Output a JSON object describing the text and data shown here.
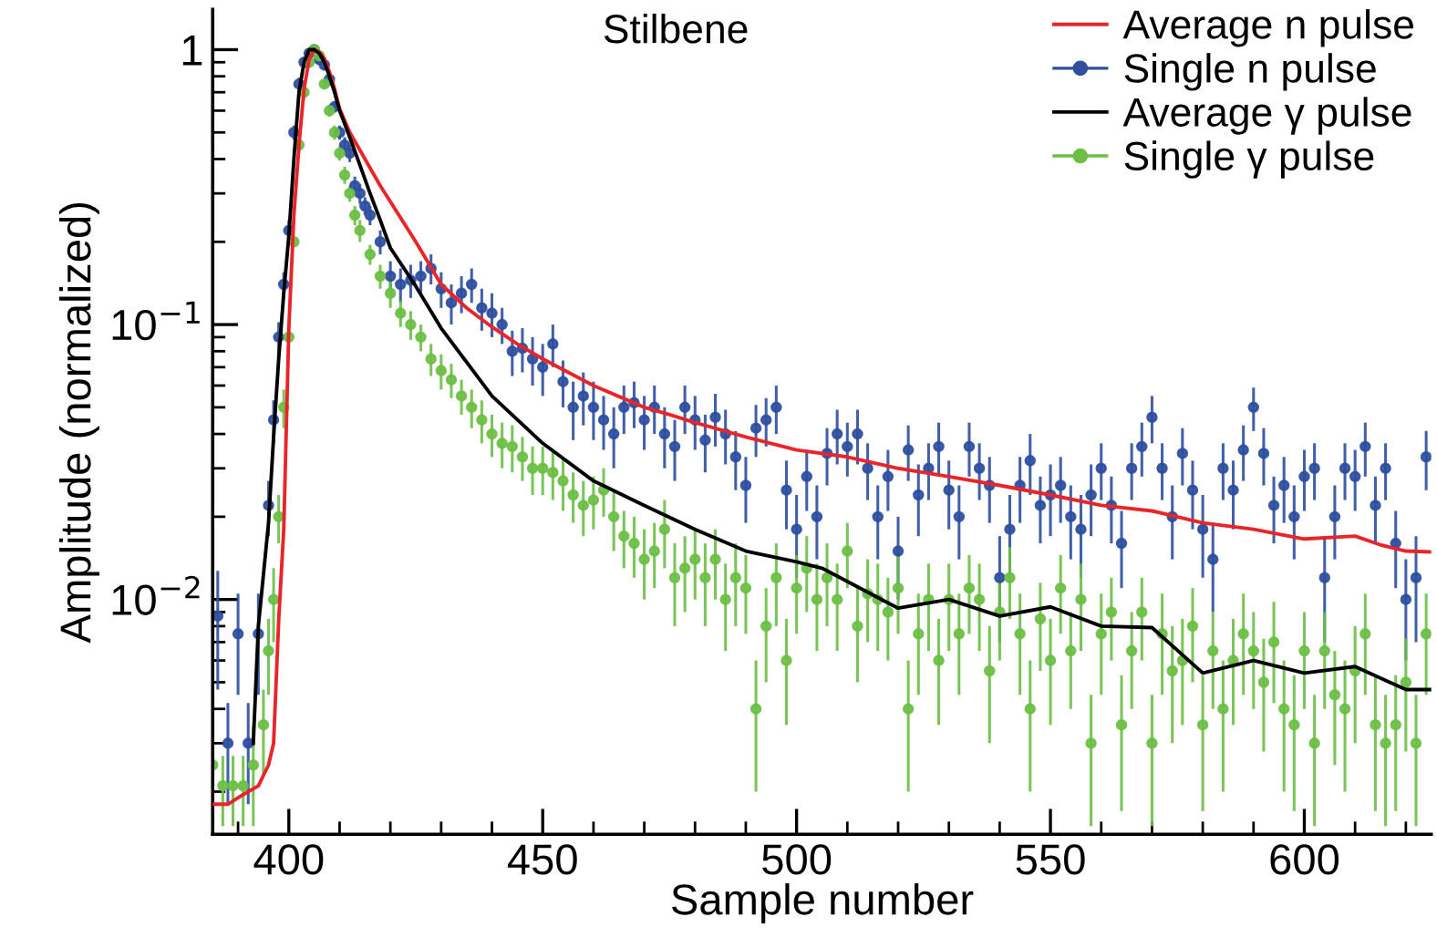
{
  "chart_data": {
    "type": "line",
    "title": "Stilbene",
    "xlabel": "Sample number",
    "ylabel": "Amplitude (normalized)",
    "log": "y",
    "xlim": [
      385,
      625
    ],
    "xticks": [
      400,
      450,
      500,
      550,
      600
    ],
    "ylim": [
      0.0014,
      1.4
    ],
    "yticks": [
      {
        "value": 1,
        "label": "1"
      },
      {
        "value": 0.1,
        "label": "10$^{−1}$"
      },
      {
        "value": 0.01,
        "label": "10$^{−2}$"
      }
    ],
    "legend": "top right",
    "grid": false,
    "series": [
      {
        "name": "Average n pulse",
        "color": "#e8262a",
        "x": [
          385,
          388,
          390,
          392,
          394,
          396,
          397,
          398,
          399,
          400,
          401,
          402,
          403,
          404,
          405,
          406,
          407,
          408,
          409,
          410,
          412,
          415,
          418,
          420,
          425,
          430,
          435,
          440,
          445,
          450,
          460,
          470,
          475,
          480,
          490,
          500,
          510,
          520,
          530,
          540,
          550,
          560,
          570,
          580,
          590,
          600,
          610,
          615,
          620,
          625
        ],
        "values": [
          0.0018,
          0.0018,
          0.0019,
          0.002,
          0.0021,
          0.0025,
          0.003,
          0.0084,
          0.018,
          0.097,
          0.25,
          0.45,
          0.72,
          0.92,
          1.0,
          0.98,
          0.93,
          0.83,
          0.72,
          0.61,
          0.5,
          0.4,
          0.32,
          0.28,
          0.2,
          0.14,
          0.115,
          0.098,
          0.085,
          0.075,
          0.06,
          0.05,
          0.047,
          0.044,
          0.039,
          0.035,
          0.033,
          0.03,
          0.028,
          0.026,
          0.024,
          0.022,
          0.021,
          0.019,
          0.018,
          0.0166,
          0.017,
          0.0158,
          0.015,
          0.0149
        ]
      },
      {
        "name": "Single n pulse",
        "type": "scatter",
        "marker": "circle",
        "color": "#2e4fa0",
        "x": [
          386,
          388,
          390,
          392,
          394,
          396,
          397,
          398,
          399,
          400,
          401,
          402,
          403,
          404,
          405,
          406,
          407,
          408,
          409,
          410,
          411,
          412,
          413,
          414,
          415,
          416,
          418,
          420,
          422,
          424,
          426,
          428,
          430,
          432,
          434,
          436,
          438,
          440,
          442,
          444,
          446,
          448,
          450,
          452,
          454,
          456,
          458,
          460,
          462,
          464,
          466,
          468,
          470,
          472,
          474,
          476,
          478,
          480,
          482,
          484,
          486,
          488,
          490,
          492,
          494,
          496,
          498,
          500,
          502,
          504,
          506,
          508,
          510,
          512,
          514,
          516,
          518,
          520,
          522,
          524,
          526,
          528,
          530,
          532,
          534,
          536,
          538,
          540,
          542,
          544,
          546,
          548,
          550,
          552,
          554,
          556,
          558,
          560,
          562,
          564,
          566,
          568,
          570,
          572,
          574,
          576,
          578,
          580,
          582,
          584,
          586,
          588,
          590,
          592,
          594,
          596,
          598,
          600,
          602,
          604,
          606,
          608,
          610,
          612,
          614,
          616,
          618,
          620,
          622,
          624
        ],
        "values": [
          0.0087,
          0.003,
          0.0075,
          0.003,
          0.0075,
          0.022,
          0.045,
          0.09,
          0.14,
          0.22,
          0.5,
          0.75,
          0.9,
          0.97,
          1.0,
          0.92,
          0.88,
          0.78,
          0.62,
          0.5,
          0.45,
          0.42,
          0.32,
          0.3,
          0.27,
          0.25,
          0.2,
          0.15,
          0.14,
          0.145,
          0.15,
          0.16,
          0.135,
          0.12,
          0.13,
          0.14,
          0.115,
          0.11,
          0.1,
          0.08,
          0.082,
          0.075,
          0.07,
          0.085,
          0.062,
          0.05,
          0.055,
          0.05,
          0.045,
          0.04,
          0.05,
          0.052,
          0.045,
          0.05,
          0.04,
          0.036,
          0.05,
          0.045,
          0.038,
          0.046,
          0.04,
          0.033,
          0.026,
          0.042,
          0.045,
          0.05,
          0.025,
          0.018,
          0.028,
          0.02,
          0.034,
          0.04,
          0.036,
          0.04,
          0.03,
          0.02,
          0.028,
          0.015,
          0.035,
          0.024,
          0.03,
          0.036,
          0.025,
          0.02,
          0.036,
          0.03,
          0.026,
          0.012,
          0.018,
          0.026,
          0.032,
          0.022,
          0.024,
          0.026,
          0.02,
          0.018,
          0.024,
          0.03,
          0.022,
          0.016,
          0.03,
          0.036,
          0.046,
          0.03,
          0.02,
          0.034,
          0.025,
          0.018,
          0.014,
          0.03,
          0.025,
          0.035,
          0.05,
          0.034,
          0.022,
          0.026,
          0.02,
          0.028,
          0.03,
          0.012,
          0.02,
          0.03,
          0.028,
          0.036,
          0.022,
          0.03,
          0.016,
          0.01,
          0.012,
          0.033
        ],
        "errors": [
          0.004,
          0.0012,
          0.003,
          0.0012,
          0.003,
          0.005,
          0.008,
          0.012,
          0.015,
          0.02,
          0.03,
          0.04,
          0.04,
          0.04,
          0.04,
          0.04,
          0.04,
          0.04,
          0.03,
          0.03,
          0.03,
          0.03,
          0.025,
          0.025,
          0.02,
          0.02,
          0.02,
          0.02,
          0.02,
          0.02,
          0.02,
          0.02,
          0.02,
          0.02,
          0.02,
          0.02,
          0.02,
          0.02,
          0.015,
          0.015,
          0.015,
          0.015,
          0.015,
          0.015,
          0.012,
          0.012,
          0.012,
          0.012,
          0.01,
          0.01,
          0.01,
          0.01,
          0.01,
          0.01,
          0.01,
          0.009,
          0.01,
          0.01,
          0.009,
          0.01,
          0.009,
          0.008,
          0.007,
          0.009,
          0.009,
          0.01,
          0.007,
          0.006,
          0.007,
          0.006,
          0.008,
          0.009,
          0.008,
          0.009,
          0.007,
          0.006,
          0.007,
          0.005,
          0.008,
          0.007,
          0.007,
          0.008,
          0.007,
          0.006,
          0.008,
          0.007,
          0.007,
          0.005,
          0.006,
          0.007,
          0.008,
          0.006,
          0.007,
          0.007,
          0.006,
          0.006,
          0.007,
          0.007,
          0.006,
          0.005,
          0.007,
          0.008,
          0.009,
          0.007,
          0.006,
          0.008,
          0.007,
          0.006,
          0.005,
          0.007,
          0.007,
          0.008,
          0.009,
          0.008,
          0.006,
          0.007,
          0.006,
          0.007,
          0.007,
          0.005,
          0.006,
          0.007,
          0.007,
          0.008,
          0.006,
          0.007,
          0.005,
          0.004,
          0.005,
          0.008
        ]
      },
      {
        "name": "Average γ pulse",
        "color": "#000000",
        "x": [
          393,
          394,
          396,
          397,
          398,
          399,
          400,
          401,
          402,
          403,
          404,
          405,
          406,
          407,
          408,
          409,
          410,
          412,
          414,
          416,
          418,
          420,
          425,
          430,
          440,
          450,
          460,
          470,
          480,
          490,
          500,
          505,
          520,
          530,
          540,
          550,
          560,
          570,
          580,
          590,
          600,
          610,
          620,
          625
        ],
        "values": [
          0.003,
          0.008,
          0.019,
          0.039,
          0.075,
          0.13,
          0.21,
          0.4,
          0.7,
          0.9,
          1.0,
          1.0,
          0.97,
          0.9,
          0.8,
          0.7,
          0.6,
          0.48,
          0.38,
          0.3,
          0.24,
          0.19,
          0.138,
          0.097,
          0.055,
          0.037,
          0.027,
          0.022,
          0.018,
          0.015,
          0.0137,
          0.013,
          0.0093,
          0.01,
          0.0087,
          0.0094,
          0.008,
          0.0079,
          0.0054,
          0.006,
          0.0054,
          0.0057,
          0.0047,
          0.0047
        ]
      },
      {
        "name": "Single γ pulse",
        "type": "scatter",
        "marker": "circle",
        "color": "#6cbf45",
        "x": [
          385,
          387,
          389,
          391,
          393,
          395,
          396,
          397,
          398,
          399,
          400,
          401,
          402,
          403,
          404,
          405,
          406,
          407,
          408,
          409,
          410,
          411,
          412,
          413,
          414,
          416,
          418,
          420,
          422,
          424,
          426,
          428,
          430,
          432,
          434,
          436,
          438,
          440,
          442,
          444,
          446,
          448,
          450,
          452,
          454,
          456,
          458,
          460,
          462,
          464,
          466,
          468,
          470,
          472,
          474,
          476,
          478,
          480,
          482,
          484,
          486,
          488,
          490,
          492,
          494,
          496,
          498,
          500,
          502,
          504,
          506,
          508,
          510,
          512,
          514,
          516,
          518,
          520,
          522,
          524,
          526,
          528,
          530,
          532,
          534,
          536,
          538,
          540,
          542,
          544,
          546,
          548,
          550,
          552,
          554,
          556,
          558,
          560,
          562,
          564,
          566,
          568,
          570,
          572,
          574,
          576,
          578,
          580,
          582,
          584,
          586,
          588,
          590,
          592,
          594,
          596,
          598,
          600,
          602,
          604,
          606,
          608,
          610,
          612,
          614,
          616,
          618,
          620,
          622,
          624
        ],
        "values": [
          0.0025,
          0.0021,
          0.0021,
          0.0021,
          0.0025,
          0.0035,
          0.0065,
          0.01,
          0.02,
          0.05,
          0.09,
          0.2,
          0.45,
          0.7,
          0.9,
          1.0,
          0.95,
          0.75,
          0.6,
          0.5,
          0.42,
          0.35,
          0.3,
          0.25,
          0.22,
          0.18,
          0.15,
          0.13,
          0.11,
          0.1,
          0.09,
          0.075,
          0.068,
          0.063,
          0.055,
          0.05,
          0.045,
          0.04,
          0.037,
          0.036,
          0.033,
          0.03,
          0.03,
          0.029,
          0.027,
          0.024,
          0.022,
          0.023,
          0.025,
          0.02,
          0.017,
          0.016,
          0.014,
          0.015,
          0.018,
          0.012,
          0.013,
          0.014,
          0.012,
          0.014,
          0.01,
          0.012,
          0.011,
          0.004,
          0.008,
          0.012,
          0.006,
          0.011,
          0.013,
          0.01,
          0.012,
          0.01,
          0.015,
          0.008,
          0.0105,
          0.01,
          0.009,
          0.011,
          0.004,
          0.0075,
          0.01,
          0.006,
          0.01,
          0.0075,
          0.011,
          0.01,
          0.0055,
          0.009,
          0.012,
          0.0075,
          0.004,
          0.0085,
          0.006,
          0.011,
          0.0065,
          0.01,
          0.003,
          0.0075,
          0.009,
          0.0035,
          0.0065,
          0.009,
          0.003,
          0.0075,
          0.0055,
          0.006,
          0.008,
          0.0035,
          0.0065,
          0.004,
          0.006,
          0.0075,
          0.0065,
          0.005,
          0.007,
          0.004,
          0.0035,
          0.0065,
          0.003,
          0.0065,
          0.0045,
          0.004,
          0.0055,
          0.0075,
          0.0035,
          0.003,
          0.0035,
          0.005,
          0.003,
          0.0075
        ],
        "errors": [
          null,
          0.0006,
          0.0006,
          0.0006,
          0.001,
          0.0012,
          0.002,
          0.003,
          0.004,
          0.008,
          null,
          null,
          0.03,
          0.04,
          0.04,
          0.04,
          0.04,
          0.03,
          0.03,
          0.03,
          0.025,
          0.025,
          0.02,
          0.02,
          0.02,
          0.015,
          0.015,
          0.015,
          0.012,
          0.012,
          0.01,
          0.01,
          0.01,
          0.009,
          0.008,
          0.008,
          0.008,
          0.007,
          0.007,
          0.007,
          0.006,
          0.006,
          0.006,
          0.006,
          0.006,
          0.005,
          0.005,
          0.005,
          0.005,
          0.005,
          0.004,
          0.004,
          0.004,
          0.004,
          0.005,
          0.004,
          0.004,
          0.004,
          0.004,
          0.004,
          0.0035,
          0.004,
          0.0035,
          0.002,
          0.003,
          0.004,
          0.0025,
          0.0035,
          0.004,
          0.0035,
          0.004,
          0.0035,
          0.004,
          0.003,
          0.0035,
          0.0035,
          0.003,
          0.0035,
          0.002,
          0.003,
          0.0035,
          0.0025,
          0.0035,
          0.003,
          0.0035,
          0.0035,
          0.0025,
          0.003,
          0.0035,
          0.003,
          0.002,
          0.003,
          0.0025,
          0.0035,
          0.0025,
          0.0035,
          0.0015,
          0.003,
          0.003,
          0.0018,
          0.0025,
          0.003,
          0.0015,
          0.003,
          0.0025,
          0.0025,
          0.003,
          0.0018,
          0.0025,
          0.002,
          0.0025,
          0.003,
          0.0025,
          0.0022,
          0.0028,
          0.002,
          0.0018,
          0.0025,
          0.0015,
          0.0025,
          0.002,
          0.002,
          0.0025,
          0.003,
          0.0018,
          0.0015,
          0.0018,
          0.0022,
          0.0015,
          0.003
        ]
      }
    ]
  }
}
